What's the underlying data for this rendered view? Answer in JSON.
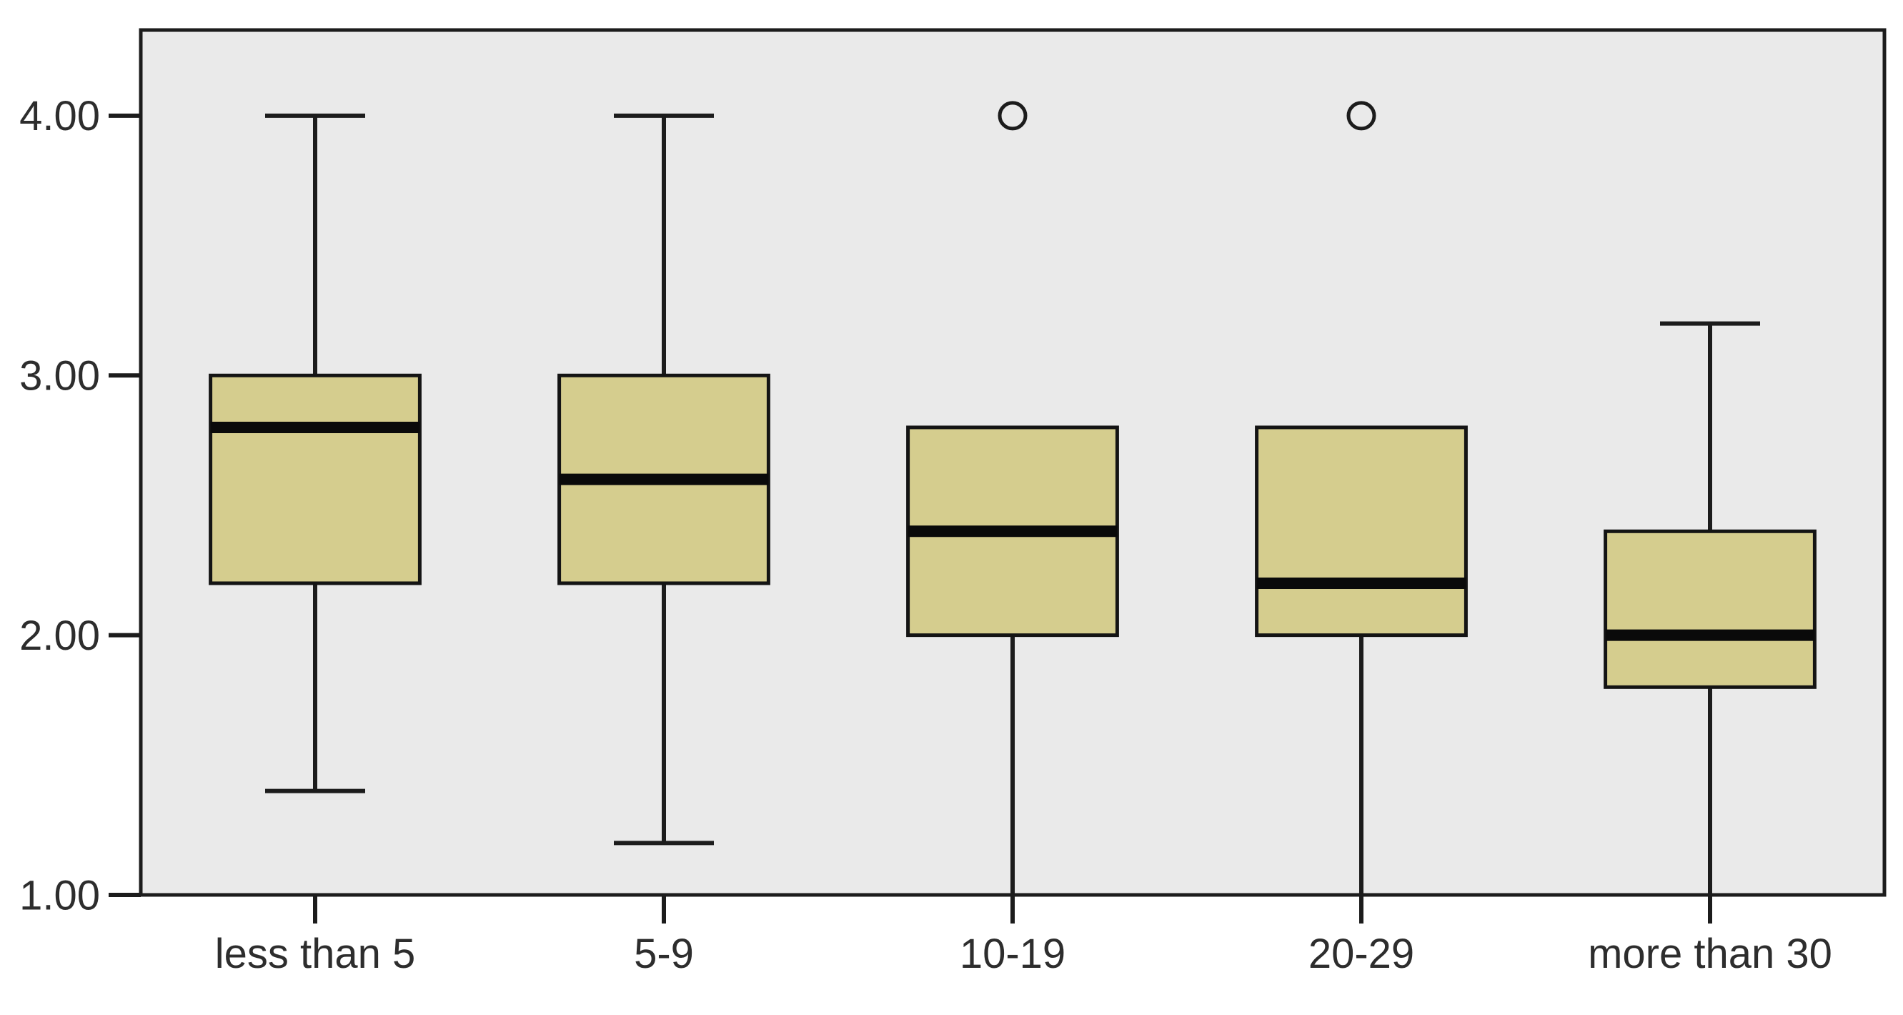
{
  "chart_data": {
    "type": "boxplot",
    "title": "",
    "xlabel": "",
    "ylabel": "",
    "grid": false,
    "legend": null,
    "categories": [
      "less than 5",
      "5-9",
      "10-19",
      "20-29",
      "more than 30"
    ],
    "boxes": [
      {
        "category": "less than 5",
        "whisker_low": 1.4,
        "q1": 2.2,
        "median": 2.8,
        "q3": 3.0,
        "whisker_high": 4.0,
        "outliers": []
      },
      {
        "category": "5-9",
        "whisker_low": 1.2,
        "q1": 2.2,
        "median": 2.6,
        "q3": 3.0,
        "whisker_high": 4.0,
        "outliers": []
      },
      {
        "category": "10-19",
        "whisker_low": 1.0,
        "q1": 2.0,
        "median": 2.4,
        "q3": 2.8,
        "whisker_high": null,
        "outliers": [
          4.0
        ]
      },
      {
        "category": "20-29",
        "whisker_low": 1.0,
        "q1": 2.0,
        "median": 2.2,
        "q3": 2.8,
        "whisker_high": null,
        "outliers": [
          4.0
        ]
      },
      {
        "category": "more than 30",
        "whisker_low": 1.0,
        "q1": 1.8,
        "median": 2.0,
        "q3": 2.4,
        "whisker_high": 3.2,
        "outliers": []
      }
    ],
    "y_ticks": [
      {
        "value": 1.0,
        "label": "1.00"
      },
      {
        "value": 2.0,
        "label": "2.00"
      },
      {
        "value": 3.0,
        "label": "3.00"
      },
      {
        "value": 4.0,
        "label": "4.00"
      }
    ],
    "ylim": [
      1.0,
      4.33
    ],
    "colors": {
      "box_fill": "#d5cd8e",
      "box_stroke": "#141414",
      "median": "#0a0a0a",
      "whisker": "#1c1c1c",
      "plot_bg": "#eaeaea",
      "plot_border": "#1c1c1c",
      "page_bg": "#ffffff",
      "text": "#2d2d2d"
    }
  }
}
